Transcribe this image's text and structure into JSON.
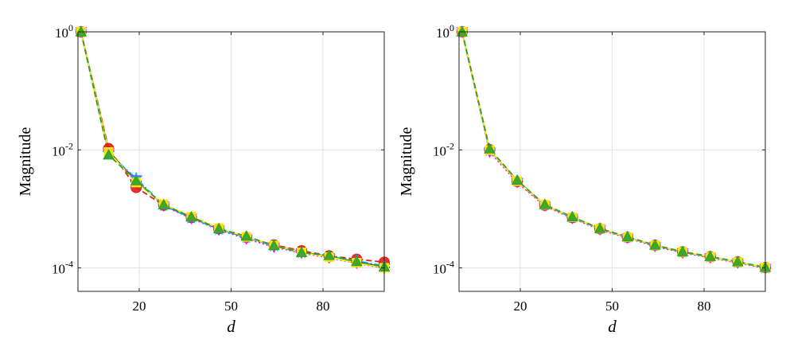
{
  "chart_data": [
    {
      "type": "line",
      "title": "",
      "xlabel": "d",
      "ylabel": "Magnitude",
      "yscale": "log",
      "xlim": [
        0,
        100
      ],
      "ylim": [
        4e-05,
        1
      ],
      "xticks": [
        20,
        50,
        80
      ],
      "xtick_labels": [
        "20",
        "50",
        "80"
      ],
      "yticks": [
        1,
        0.01,
        0.0001
      ],
      "ytick_labels": [
        {
          "base": "10",
          "exp": "0"
        },
        {
          "base": "10",
          "exp": "-2"
        },
        {
          "base": "10",
          "exp": "-4"
        }
      ],
      "grid": true,
      "x": [
        1,
        10,
        19,
        28,
        37,
        46,
        55,
        64,
        73,
        82,
        91,
        100
      ],
      "series": [
        {
          "color": "#000000",
          "dash": "solid",
          "marker": "diamond",
          "values": [
            1,
            0.0095,
            0.0029,
            0.00118,
            0.00072,
            0.00046,
            0.00033,
            0.00024,
            0.000185,
            0.000155,
            0.000125,
            0.000102
          ]
        },
        {
          "color": "#e41a1c",
          "dash": "dashed",
          "marker": "circle",
          "values": [
            1,
            0.0105,
            0.0023,
            0.00115,
            0.00071,
            0.00046,
            0.00033,
            0.000245,
            0.000195,
            0.00016,
            0.00014,
            0.000125
          ]
        },
        {
          "color": "#ff00ff",
          "dash": "dotted",
          "marker": "triangle-down",
          "values": [
            1,
            0.009,
            0.0031,
            0.00112,
            0.00069,
            0.00044,
            0.00031,
            0.000225,
            0.000178,
            0.000148,
            0.00012,
            9.8e-05
          ]
        },
        {
          "color": "#00b4ff",
          "dash": "dashdot",
          "marker": "star",
          "values": [
            1,
            0.0087,
            0.0033,
            0.00114,
            0.0007,
            0.00045,
            0.000325,
            0.000235,
            0.00018,
            0.000158,
            0.000132,
            0.000108
          ]
        },
        {
          "color": "#ffee00",
          "dash": "solid",
          "marker": "square",
          "values": [
            1,
            0.0092,
            0.0028,
            0.0012,
            0.00074,
            0.00047,
            0.000335,
            0.00024,
            0.000183,
            0.000152,
            0.000122,
            0.0001
          ]
        },
        {
          "color": "#2ca02c",
          "dash": "dashed",
          "marker": "triangle-up",
          "values": [
            1,
            0.0082,
            0.003,
            0.00117,
            0.00073,
            0.00046,
            0.000345,
            0.000238,
            0.000182,
            0.000162,
            0.000128,
            0.000104
          ]
        }
      ]
    },
    {
      "type": "line",
      "title": "",
      "xlabel": "d",
      "ylabel": "Magnitude",
      "yscale": "log",
      "xlim": [
        0,
        100
      ],
      "ylim": [
        4e-05,
        1
      ],
      "xticks": [
        20,
        50,
        80
      ],
      "xtick_labels": [
        "20",
        "50",
        "80"
      ],
      "yticks": [
        1,
        0.01,
        0.0001
      ],
      "ytick_labels": [
        {
          "base": "10",
          "exp": "0"
        },
        {
          "base": "10",
          "exp": "-2"
        },
        {
          "base": "10",
          "exp": "-4"
        }
      ],
      "grid": true,
      "x": [
        1,
        10,
        19,
        28,
        37,
        46,
        55,
        64,
        73,
        82,
        91,
        100
      ],
      "series": [
        {
          "color": "#000000",
          "dash": "solid",
          "marker": "diamond",
          "values": [
            1,
            0.0098,
            0.003,
            0.00117,
            0.00072,
            0.00046,
            0.00033,
            0.00024,
            0.000185,
            0.000153,
            0.000125,
            0.0001
          ]
        },
        {
          "color": "#e41a1c",
          "dash": "dashed",
          "marker": "circle",
          "values": [
            1,
            0.0101,
            0.0029,
            0.00115,
            0.00071,
            0.00046,
            0.00033,
            0.000242,
            0.000187,
            0.000155,
            0.000126,
            0.000101
          ]
        },
        {
          "color": "#ff00ff",
          "dash": "dotted",
          "marker": "triangle-down",
          "values": [
            1,
            0.0092,
            0.0028,
            0.00112,
            0.00069,
            0.000445,
            0.00032,
            0.000232,
            0.00018,
            0.000149,
            0.000121,
            9.8e-05
          ]
        },
        {
          "color": "#00b4ff",
          "dash": "dashdot",
          "marker": "star",
          "values": [
            1,
            0.0097,
            0.003,
            0.00116,
            0.00071,
            0.00046,
            0.00033,
            0.00024,
            0.000184,
            0.000152,
            0.000124,
            0.0001
          ]
        },
        {
          "color": "#ffee00",
          "dash": "solid",
          "marker": "square",
          "values": [
            1,
            0.0099,
            0.00295,
            0.00117,
            0.00072,
            0.000462,
            0.000332,
            0.000241,
            0.000186,
            0.000154,
            0.000125,
            0.000101
          ]
        },
        {
          "color": "#2ca02c",
          "dash": "dashed",
          "marker": "triangle-up",
          "values": [
            1,
            0.0104,
            0.00305,
            0.00118,
            0.00073,
            0.000465,
            0.000335,
            0.000243,
            0.000188,
            0.000156,
            0.000127,
            0.000102
          ]
        }
      ]
    }
  ]
}
